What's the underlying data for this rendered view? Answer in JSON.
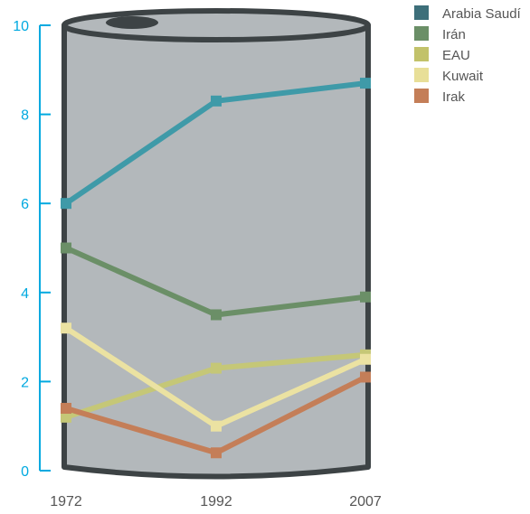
{
  "chart_data": {
    "type": "line",
    "title": "",
    "xlabel": "",
    "ylabel": "",
    "x": [
      "1972",
      "1992",
      "2007"
    ],
    "ylim": [
      0,
      10
    ],
    "yticks": [
      0,
      2,
      4,
      6,
      8,
      10
    ],
    "grid": false,
    "legend_position": "top-right",
    "series": [
      {
        "name": "Arabia Saudí",
        "color": "#3f9aa8",
        "legend_color": "#3d6f7a",
        "values": [
          6.0,
          8.3,
          8.7
        ]
      },
      {
        "name": "Irán",
        "color": "#6b8f67",
        "legend_color": "#6b8f67",
        "values": [
          5.0,
          3.5,
          3.9
        ]
      },
      {
        "name": "EAU",
        "color": "#c5c777",
        "legend_color": "#c2c26a",
        "values": [
          1.2,
          2.3,
          2.6
        ]
      },
      {
        "name": "Kuwait",
        "color": "#ebe2a2",
        "legend_color": "#e8df98",
        "values": [
          3.2,
          1.0,
          2.5
        ]
      },
      {
        "name": "Irak",
        "color": "#c47e58",
        "legend_color": "#c47e58",
        "values": [
          1.4,
          0.4,
          2.1
        ]
      }
    ],
    "colors": {
      "axis": "#00a9e0",
      "barrel_fill": "#b3b8bb",
      "barrel_stroke": "#3d4345",
      "label_text": "#555555"
    }
  }
}
